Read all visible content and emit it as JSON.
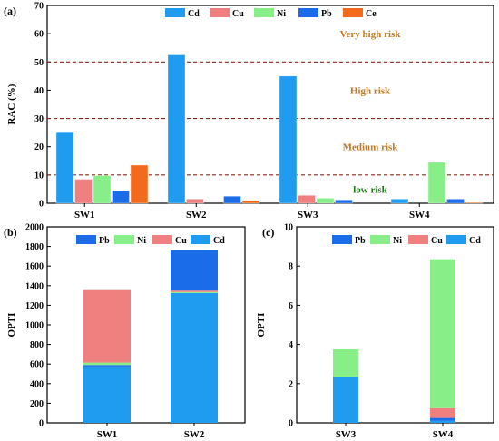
{
  "colors": {
    "Cd": "#1f9bf0",
    "Cu": "#f08080",
    "Ni": "#88ee88",
    "Pb": "#1a6ce8",
    "Ce": "#f26b1d",
    "threshold": "#8b2a1a",
    "zone_text": "#c07826",
    "zone_text_green": "#1c7a12"
  },
  "chart_data": [
    {
      "panel": "(a)",
      "type": "bar",
      "ylabel": "RAC (%)",
      "ylim": [
        0,
        70
      ],
      "yticks": [
        0,
        10,
        20,
        30,
        40,
        50,
        60,
        70
      ],
      "categories": [
        "SW1",
        "SW2",
        "SW3",
        "SW4"
      ],
      "legend_position": "top",
      "series": [
        {
          "name": "Cd",
          "values": [
            25,
            52.5,
            45,
            1.5
          ]
        },
        {
          "name": "Cu",
          "values": [
            8.5,
            1.5,
            2.8,
            0
          ]
        },
        {
          "name": "Ni",
          "values": [
            9.8,
            0,
            1.8,
            14.5
          ]
        },
        {
          "name": "Pb",
          "values": [
            4.5,
            2.5,
            1.2,
            1.5
          ]
        },
        {
          "name": "Ce",
          "values": [
            13.5,
            1,
            0,
            0.3
          ]
        }
      ],
      "thresholds": [
        10,
        30,
        50
      ],
      "zones": [
        {
          "label": "low risk",
          "y": 5
        },
        {
          "label": "Medium risk",
          "y": 20
        },
        {
          "label": "High risk",
          "y": 40
        },
        {
          "label": "Very high risk",
          "y": 60
        }
      ]
    },
    {
      "panel": "(b)",
      "type": "bar",
      "stacked": true,
      "ylabel": "OPTI",
      "ylim": [
        0,
        2000
      ],
      "yticks": [
        0,
        200,
        400,
        600,
        800,
        1000,
        1200,
        1400,
        1600,
        1800,
        2000
      ],
      "categories": [
        "SW1",
        "SW2"
      ],
      "legend_position": "top",
      "legend_order": [
        "Pb",
        "Ni",
        "Cu",
        "Cd"
      ],
      "series": [
        {
          "name": "Cd",
          "values": [
            575,
            1325
          ]
        },
        {
          "name": "Pb",
          "values": [
            15,
            0
          ]
        },
        {
          "name": "Ni",
          "values": [
            25,
            10
          ]
        },
        {
          "name": "Cu",
          "values": [
            740,
            15
          ]
        },
        {
          "name": "Pb",
          "values": [
            0,
            410
          ]
        }
      ]
    },
    {
      "panel": "(c)",
      "type": "bar",
      "stacked": true,
      "ylabel": "OPTI",
      "ylim": [
        0,
        10
      ],
      "yticks": [
        0,
        2,
        4,
        6,
        8,
        10
      ],
      "categories": [
        "SW3",
        "SW4"
      ],
      "legend_position": "top",
      "legend_order": [
        "Pb",
        "Ni",
        "Cu",
        "Cd"
      ],
      "series": [
        {
          "name": "Cd",
          "values": [
            2.35,
            0.1
          ]
        },
        {
          "name": "Pb",
          "values": [
            0,
            0.15
          ]
        },
        {
          "name": "Cu",
          "values": [
            0,
            0.5
          ]
        },
        {
          "name": "Ni",
          "values": [
            1.4,
            7.6
          ]
        }
      ]
    }
  ]
}
